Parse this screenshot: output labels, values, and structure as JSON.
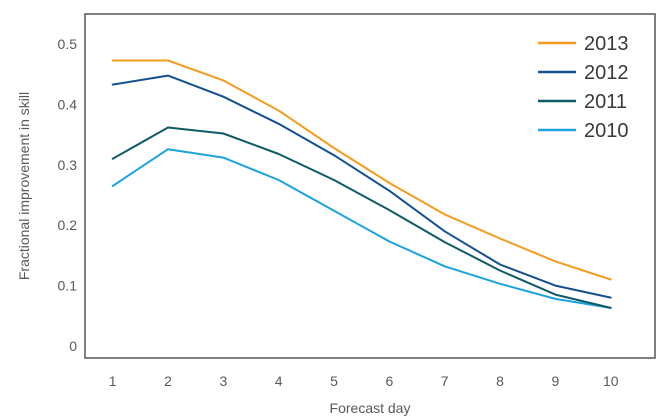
{
  "chart_data": {
    "type": "line",
    "title": "",
    "xlabel": "Forecast day",
    "ylabel": "Fractional improvement in skill",
    "x": [
      1,
      2,
      3,
      4,
      5,
      6,
      7,
      8,
      9,
      10
    ],
    "xlim": [
      0.5,
      10.8
    ],
    "ylim": [
      -0.02,
      0.55
    ],
    "y_ticks": [
      0,
      0.1,
      0.2,
      0.3,
      0.4,
      0.5
    ],
    "y_tick_labels": [
      "0",
      "0.1",
      "0.2",
      "0.3",
      "0.4",
      "0.5"
    ],
    "x_tick_labels": [
      "1",
      "2",
      "3",
      "4",
      "5",
      "6",
      "7",
      "8",
      "9",
      "10"
    ],
    "grid": false,
    "legend_position": "top-right",
    "series": [
      {
        "name": "2013",
        "color": "#f39c1f",
        "values": [
          0.473,
          0.473,
          0.44,
          0.39,
          0.328,
          0.27,
          0.218,
          0.178,
          0.14,
          0.11
        ]
      },
      {
        "name": "2012",
        "color": "#13508f",
        "values": [
          0.433,
          0.448,
          0.413,
          0.368,
          0.316,
          0.257,
          0.19,
          0.135,
          0.1,
          0.08
        ]
      },
      {
        "name": "2011",
        "color": "#0e5a66",
        "values": [
          0.31,
          0.362,
          0.352,
          0.318,
          0.275,
          0.225,
          0.172,
          0.125,
          0.085,
          0.063
        ]
      },
      {
        "name": "2010",
        "color": "#1aa3df",
        "values": [
          0.265,
          0.326,
          0.312,
          0.275,
          0.224,
          0.173,
          0.132,
          0.103,
          0.078,
          0.063
        ]
      }
    ]
  }
}
